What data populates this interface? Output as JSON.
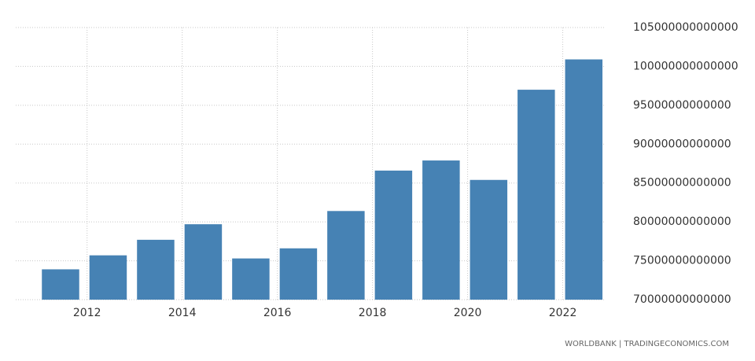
{
  "chart_data": {
    "type": "bar",
    "source": "WORLDBANK | TRADINGECONOMICS.COM",
    "x": [
      2011,
      2012,
      2013,
      2014,
      2015,
      2016,
      2017,
      2018,
      2019,
      2020,
      2021,
      2022
    ],
    "values": [
      73900000000000,
      75700000000000,
      77700000000000,
      79700000000000,
      75300000000000,
      76600000000000,
      81400000000000,
      86600000000000,
      87900000000000,
      85400000000000,
      97000000000000,
      100900000000000
    ],
    "color": "#4682b4",
    "xlim": [
      2010.5,
      2022.9
    ],
    "xticks": [
      2012,
      2014,
      2016,
      2018,
      2020,
      2022
    ],
    "ylim": [
      70000000000000,
      105000000000000
    ],
    "yticks": [
      70000000000000,
      75000000000000,
      80000000000000,
      85000000000000,
      90000000000000,
      95000000000000,
      100000000000000,
      105000000000000
    ],
    "grid": true
  }
}
